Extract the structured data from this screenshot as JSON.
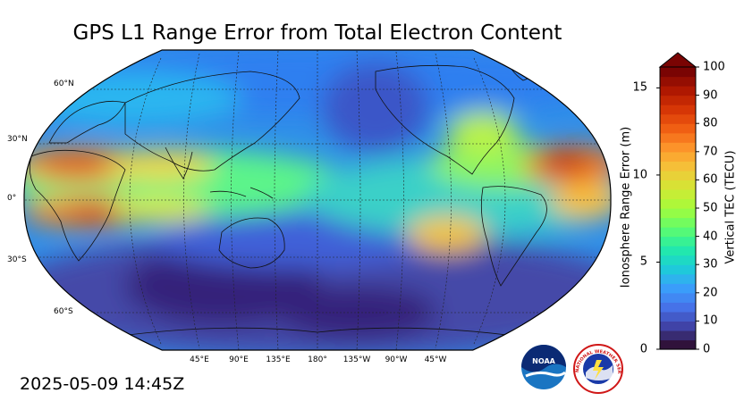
{
  "title": "GPS L1 Range Error from Total Electron Content",
  "timestamp": "2025-05-09 14:45Z",
  "map": {
    "projection": "robinson",
    "lat_labels": [
      "60°N",
      "30°N",
      "0°",
      "30°S",
      "60°S"
    ],
    "lon_labels": [
      "45°E",
      "90°E",
      "135°E",
      "180°",
      "135°W",
      "90°W",
      "45°W"
    ],
    "gridlines": "dashed"
  },
  "colorbar": {
    "left_label": "Ionosphere Range Error (m)",
    "right_label": "Vertical TEC (TECU)",
    "left_ticks": [
      "0",
      "5",
      "10",
      "15"
    ],
    "right_ticks": [
      "0",
      "10",
      "20",
      "30",
      "40",
      "50",
      "60",
      "70",
      "80",
      "90",
      "100"
    ],
    "range_tecu": [
      0,
      100
    ],
    "range_m": [
      0,
      16.2
    ],
    "extend": "max",
    "colors": [
      "#30123b",
      "#4145ab",
      "#4675ed",
      "#39a2fc",
      "#1bcfd4",
      "#24eca6",
      "#61fc6c",
      "#a4fc3b",
      "#d1e834",
      "#f3c63a",
      "#fe9b2d",
      "#f36315",
      "#d93806",
      "#b11901",
      "#7a0403"
    ]
  },
  "logos": {
    "noaa": "NOAA",
    "nws": "NATIONAL WEATHER SERVICE"
  }
}
